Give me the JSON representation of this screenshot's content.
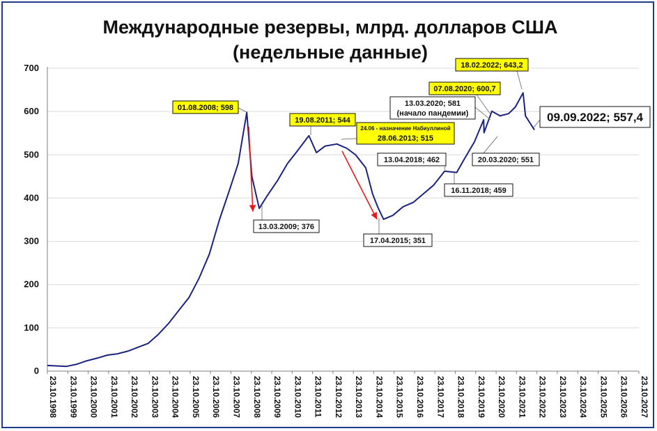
{
  "chart_data": {
    "type": "line",
    "title": "Международные резервы, млрд. долларов США",
    "subtitle": "(недельные данные)",
    "xlabel": "",
    "ylabel": "",
    "ylim": [
      0,
      700
    ],
    "yticks": [
      "0",
      "100",
      "200",
      "300",
      "400",
      "500",
      "600",
      "700"
    ],
    "xlim": [
      "1998-10-23",
      "2027-10-23"
    ],
    "xticks": [
      "23.10.1998",
      "23.10.1999",
      "23.10.2000",
      "23.10.2001",
      "23.10.2002",
      "23.10.2003",
      "23.10.2004",
      "23.10.2005",
      "23.10.2006",
      "23.10.2007",
      "23.10.2008",
      "23.10.2009",
      "23.10.2010",
      "23.10.2011",
      "23.10.2012",
      "23.10.2013",
      "23.10.2014",
      "23.10.2015",
      "23.10.2016",
      "23.10.2017",
      "23.10.2018",
      "23.10.2019",
      "23.10.2020",
      "23.10.2021",
      "23.10.2022",
      "23.10.2023",
      "23.10.2024",
      "23.10.2025",
      "23.10.2026",
      "23.10.2027"
    ],
    "grid": true,
    "line_color": "#1a237e",
    "series": [
      {
        "x": [
          "1998-10-23",
          "1999-04-01",
          "1999-10-01",
          "2000-04-01",
          "2000-10-01",
          "2001-04-01",
          "2001-10-01",
          "2002-04-01",
          "2002-10-01",
          "2003-04-01",
          "2003-10-01",
          "2004-04-01",
          "2004-10-01",
          "2005-04-01",
          "2005-10-01",
          "2006-04-01",
          "2006-10-01",
          "2007-04-01",
          "2007-10-01",
          "2008-03-01",
          "2008-08-01",
          "2008-11-01",
          "2009-03-13",
          "2009-08-01",
          "2010-02-01",
          "2010-08-01",
          "2011-01-01",
          "2011-08-19",
          "2012-01-01",
          "2012-06-01",
          "2013-01-01",
          "2013-06-28",
          "2013-12-01",
          "2014-06-01",
          "2014-10-01",
          "2015-01-01",
          "2015-04-17",
          "2015-10-01",
          "2016-04-01",
          "2016-10-01",
          "2017-04-01",
          "2017-10-01",
          "2018-04-13",
          "2018-11-16",
          "2019-04-01",
          "2019-10-01",
          "2020-03-13",
          "2020-03-20",
          "2020-08-07",
          "2021-01-01",
          "2021-06-01",
          "2021-10-01",
          "2022-02-18",
          "2022-04-01",
          "2022-09-09"
        ],
        "y": [
          13,
          12,
          11,
          16,
          24,
          30,
          37,
          40,
          46,
          55,
          64,
          85,
          110,
          140,
          170,
          215,
          270,
          350,
          420,
          480,
          598,
          450,
          376,
          405,
          440,
          480,
          505,
          544,
          505,
          520,
          525,
          515,
          500,
          470,
          410,
          380,
          351,
          360,
          380,
          390,
          410,
          430,
          462,
          459,
          490,
          530,
          581,
          551,
          600.7,
          590,
          595,
          610,
          643.2,
          590,
          557.4
        ]
      }
    ],
    "annotations": [
      {
        "text": "01.08.2008; 598",
        "highlight": true
      },
      {
        "text": "13.03.2009; 376",
        "highlight": false
      },
      {
        "text": "19.08.2011; 544",
        "highlight": true
      },
      {
        "text": "24.06 - назначение Набиуллиной",
        "text2": "28.06.2013; 515",
        "highlight": true
      },
      {
        "text": "17.04.2015; 351",
        "highlight": false
      },
      {
        "text": "13.04.2018; 462",
        "highlight": false
      },
      {
        "text": "16.11.2018; 459",
        "highlight": false
      },
      {
        "text": "13.03.2020; 581",
        "text2": "(начало пандемии)",
        "highlight": false
      },
      {
        "text": "07.08.2020; 600,7",
        "highlight": true
      },
      {
        "text": "20.03.2020; 551",
        "highlight": false
      },
      {
        "text": "18.02.2022; 643,2",
        "highlight": true
      },
      {
        "text": "09.09.2022; 557,4",
        "highlight": false
      }
    ]
  }
}
